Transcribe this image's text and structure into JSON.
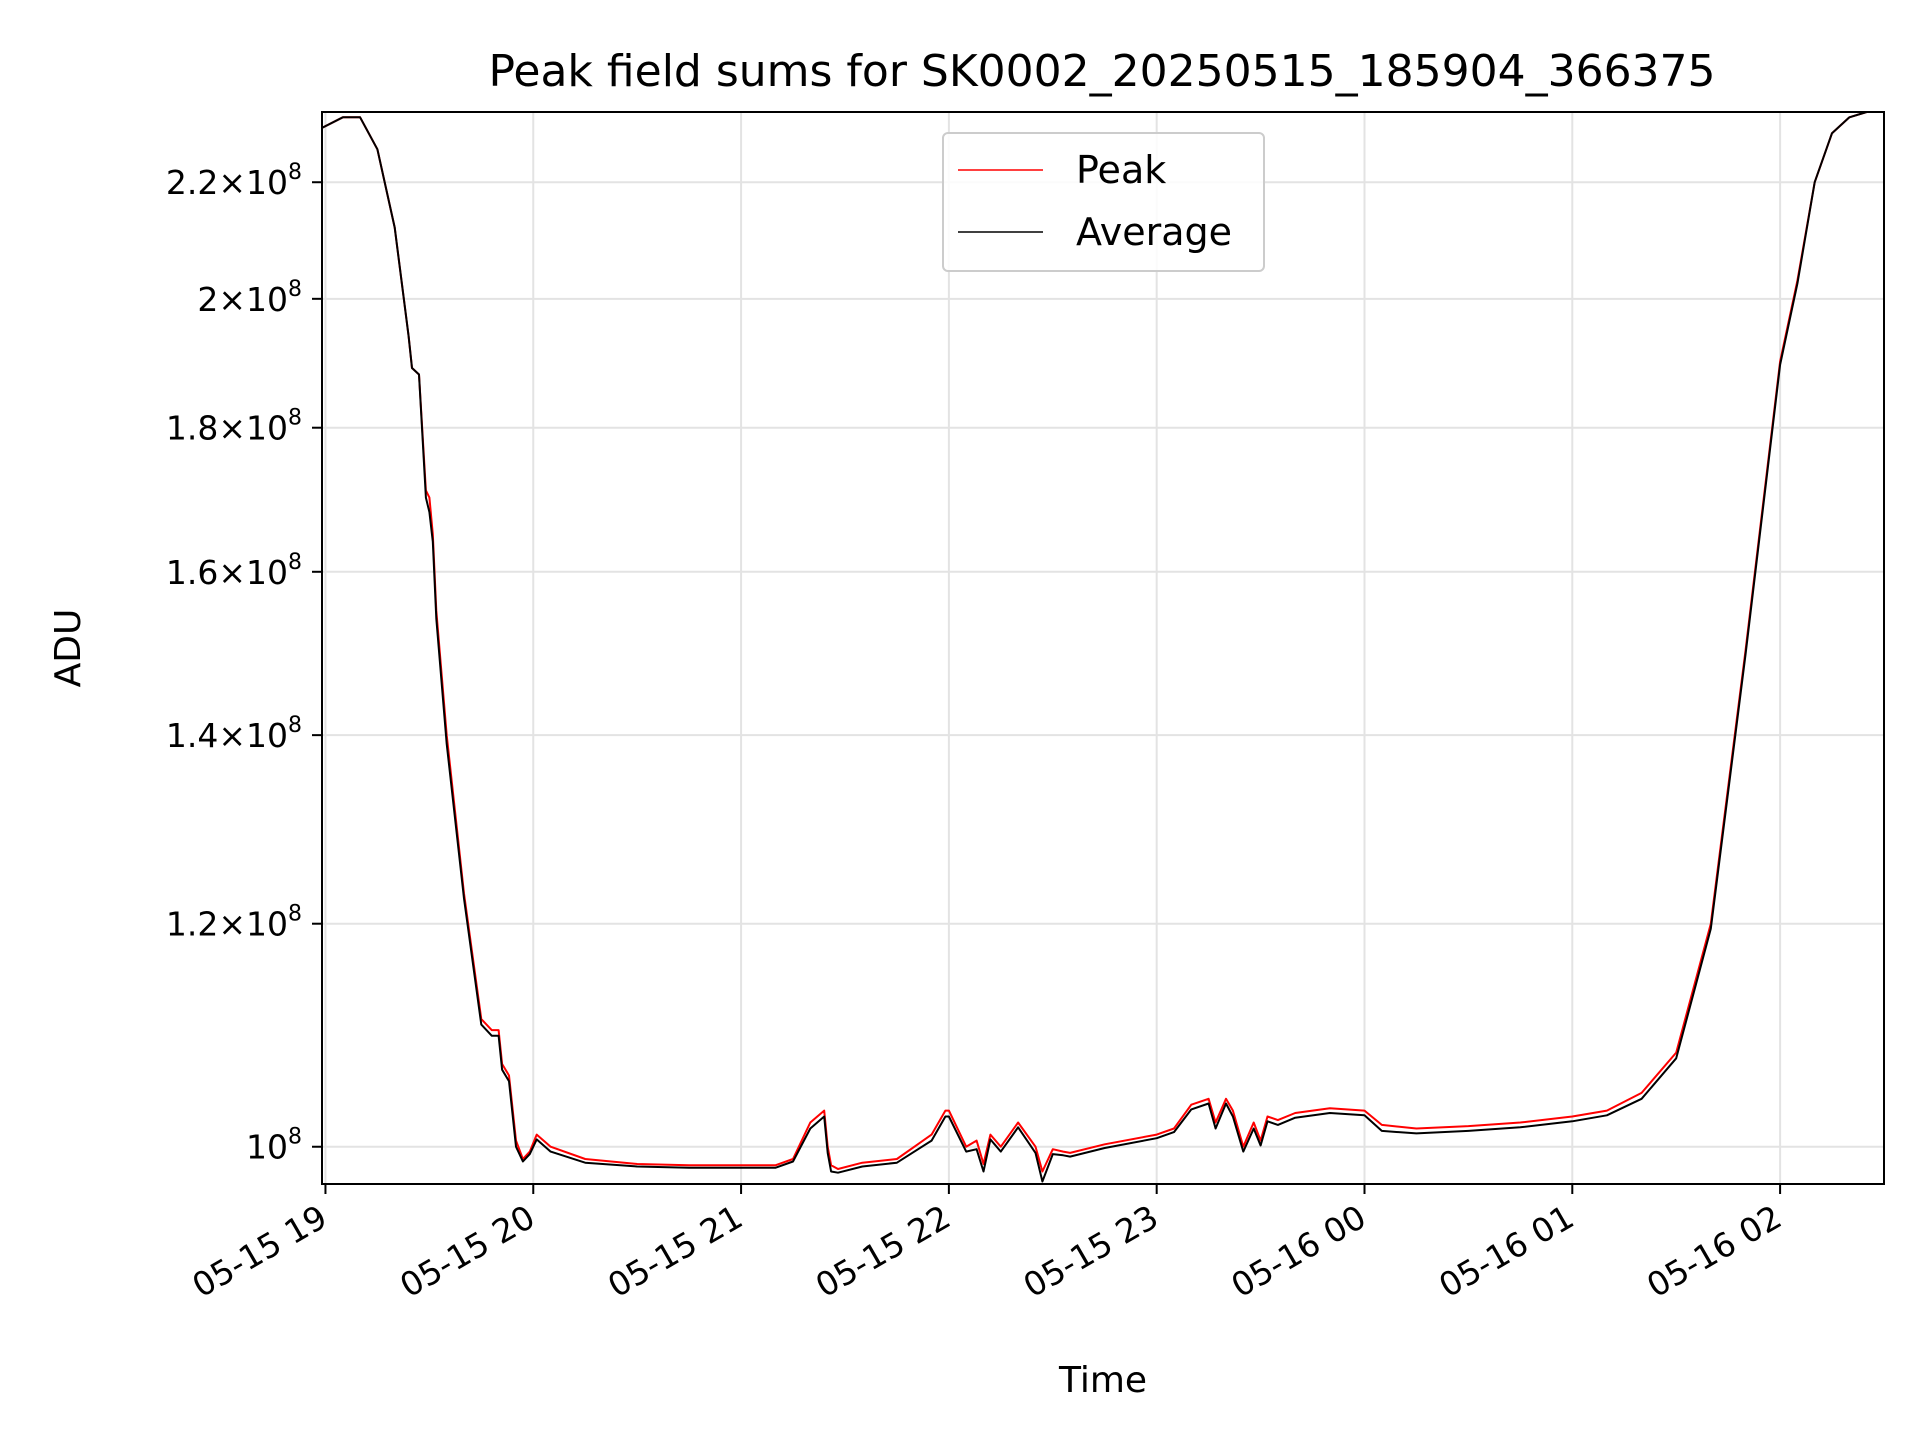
{
  "chart_data": {
    "type": "line",
    "title": "Peak field sums for SK0002_20250515_185904_366375",
    "xlabel": "Time",
    "ylabel": "ADU",
    "y_scale": "log",
    "xlim": [
      "2025-05-15 18:59",
      "2025-05-16 02:30"
    ],
    "ylim": [
      97000000,
      233000000
    ],
    "grid": true,
    "legend_position": "top-center",
    "x_ticks": [
      "2025-05-15 19:00",
      "2025-05-15 20:00",
      "2025-05-15 21:00",
      "2025-05-15 22:00",
      "2025-05-15 23:00",
      "2025-05-16 00:00",
      "2025-05-16 01:00",
      "2025-05-16 02:00"
    ],
    "x_tick_labels": [
      "05-15 19",
      "05-15 20",
      "05-15 21",
      "05-15 22",
      "05-15 23",
      "05-16 00",
      "05-16 01",
      "05-16 02"
    ],
    "y_ticks": [
      100000000,
      120000000,
      140000000,
      160000000,
      180000000,
      200000000,
      220000000
    ],
    "y_tick_labels": [
      {
        "mantissa": "",
        "base": "10",
        "exp": "8"
      },
      {
        "mantissa": "1.2",
        "base": "10",
        "exp": "8"
      },
      {
        "mantissa": "1.4",
        "base": "10",
        "exp": "8"
      },
      {
        "mantissa": "1.6",
        "base": "10",
        "exp": "8"
      },
      {
        "mantissa": "1.8",
        "base": "10",
        "exp": "8"
      },
      {
        "mantissa": "2",
        "base": "10",
        "exp": "8"
      },
      {
        "mantissa": "2.2",
        "base": "10",
        "exp": "8"
      }
    ],
    "series": [
      {
        "name": "Peak",
        "color": "#ff0000",
        "x": [
          "2025-05-15 18:59",
          "2025-05-15 19:05",
          "2025-05-15 19:10",
          "2025-05-15 19:15",
          "2025-05-15 19:20",
          "2025-05-15 19:24",
          "2025-05-15 19:25",
          "2025-05-15 19:27",
          "2025-05-15 19:29",
          "2025-05-15 19:30",
          "2025-05-15 19:31",
          "2025-05-15 19:32",
          "2025-05-15 19:35",
          "2025-05-15 19:40",
          "2025-05-15 19:45",
          "2025-05-15 19:48",
          "2025-05-15 19:50",
          "2025-05-15 19:51",
          "2025-05-15 19:53",
          "2025-05-15 19:55",
          "2025-05-15 19:57",
          "2025-05-15 19:59",
          "2025-05-15 20:01",
          "2025-05-15 20:05",
          "2025-05-15 20:15",
          "2025-05-15 20:30",
          "2025-05-15 20:45",
          "2025-05-15 21:00",
          "2025-05-15 21:10",
          "2025-05-15 21:15",
          "2025-05-15 21:20",
          "2025-05-15 21:24",
          "2025-05-15 21:25",
          "2025-05-15 21:26",
          "2025-05-15 21:28",
          "2025-05-15 21:35",
          "2025-05-15 21:45",
          "2025-05-15 21:55",
          "2025-05-15 21:59",
          "2025-05-15 22:00",
          "2025-05-15 22:05",
          "2025-05-15 22:08",
          "2025-05-15 22:10",
          "2025-05-15 22:12",
          "2025-05-15 22:15",
          "2025-05-15 22:20",
          "2025-05-15 22:25",
          "2025-05-15 22:27",
          "2025-05-15 22:30",
          "2025-05-15 22:33",
          "2025-05-15 22:35",
          "2025-05-15 22:45",
          "2025-05-15 23:00",
          "2025-05-15 23:05",
          "2025-05-15 23:10",
          "2025-05-15 23:15",
          "2025-05-15 23:17",
          "2025-05-15 23:20",
          "2025-05-15 23:22",
          "2025-05-15 23:25",
          "2025-05-15 23:28",
          "2025-05-15 23:30",
          "2025-05-15 23:32",
          "2025-05-15 23:35",
          "2025-05-15 23:40",
          "2025-05-15 23:50",
          "2025-05-16 00:00",
          "2025-05-16 00:05",
          "2025-05-16 00:15",
          "2025-05-16 00:30",
          "2025-05-16 00:45",
          "2025-05-16 01:00",
          "2025-05-16 01:10",
          "2025-05-16 01:20",
          "2025-05-16 01:30",
          "2025-05-16 01:40",
          "2025-05-16 01:50",
          "2025-05-16 02:00",
          "2025-05-16 02:05",
          "2025-05-16 02:10",
          "2025-05-16 02:15",
          "2025-05-16 02:20",
          "2025-05-16 02:25",
          "2025-05-16 02:30"
        ],
        "values": [
          230000000,
          232000000,
          232000000,
          226000000,
          212000000,
          194000000,
          189000000,
          188000000,
          171000000,
          170000000,
          165000000,
          155000000,
          140000000,
          123000000,
          111000000,
          110000000,
          110000000,
          107000000,
          106000000,
          100500000,
          99000000,
          99600000,
          101000000,
          100000000,
          99000000,
          98600000,
          98500000,
          98500000,
          98500000,
          99000000,
          102000000,
          103000000,
          100000000,
          98500000,
          98200000,
          98700000,
          99000000,
          101000000,
          103000000,
          103000000,
          100000000,
          100500000,
          98600000,
          101000000,
          100000000,
          102000000,
          100000000,
          98000000,
          99800000,
          99600000,
          99500000,
          100200000,
          101000000,
          101500000,
          103500000,
          104000000,
          102000000,
          104000000,
          103000000,
          100000000,
          102000000,
          100500000,
          102500000,
          102200000,
          102800000,
          103200000,
          103000000,
          101800000,
          101500000,
          101700000,
          102000000,
          102500000,
          103000000,
          104500000,
          108000000,
          120000000,
          150000000,
          190000000,
          203000000,
          220000000,
          229000000,
          232000000,
          233000000,
          233000000
        ]
      },
      {
        "name": "Average",
        "color": "#000000",
        "x": [
          "2025-05-15 18:59",
          "2025-05-15 19:05",
          "2025-05-15 19:10",
          "2025-05-15 19:15",
          "2025-05-15 19:20",
          "2025-05-15 19:24",
          "2025-05-15 19:25",
          "2025-05-15 19:27",
          "2025-05-15 19:29",
          "2025-05-15 19:30",
          "2025-05-15 19:31",
          "2025-05-15 19:32",
          "2025-05-15 19:35",
          "2025-05-15 19:40",
          "2025-05-15 19:45",
          "2025-05-15 19:48",
          "2025-05-15 19:50",
          "2025-05-15 19:51",
          "2025-05-15 19:53",
          "2025-05-15 19:55",
          "2025-05-15 19:57",
          "2025-05-15 19:59",
          "2025-05-15 20:01",
          "2025-05-15 20:05",
          "2025-05-15 20:15",
          "2025-05-15 20:30",
          "2025-05-15 20:45",
          "2025-05-15 21:00",
          "2025-05-15 21:10",
          "2025-05-15 21:15",
          "2025-05-15 21:20",
          "2025-05-15 21:24",
          "2025-05-15 21:25",
          "2025-05-15 21:26",
          "2025-05-15 21:28",
          "2025-05-15 21:35",
          "2025-05-15 21:45",
          "2025-05-15 21:55",
          "2025-05-15 21:59",
          "2025-05-15 22:00",
          "2025-05-15 22:05",
          "2025-05-15 22:08",
          "2025-05-15 22:10",
          "2025-05-15 22:12",
          "2025-05-15 22:15",
          "2025-05-15 22:20",
          "2025-05-15 22:25",
          "2025-05-15 22:27",
          "2025-05-15 22:30",
          "2025-05-15 22:33",
          "2025-05-15 22:35",
          "2025-05-15 22:45",
          "2025-05-15 23:00",
          "2025-05-15 23:05",
          "2025-05-15 23:10",
          "2025-05-15 23:15",
          "2025-05-15 23:17",
          "2025-05-15 23:20",
          "2025-05-15 23:22",
          "2025-05-15 23:25",
          "2025-05-15 23:28",
          "2025-05-15 23:30",
          "2025-05-15 23:32",
          "2025-05-15 23:35",
          "2025-05-15 23:40",
          "2025-05-15 23:50",
          "2025-05-16 00:00",
          "2025-05-16 00:05",
          "2025-05-16 00:15",
          "2025-05-16 00:30",
          "2025-05-16 00:45",
          "2025-05-16 01:00",
          "2025-05-16 01:10",
          "2025-05-16 01:20",
          "2025-05-16 01:30",
          "2025-05-16 01:40",
          "2025-05-16 01:50",
          "2025-05-16 02:00",
          "2025-05-16 02:05",
          "2025-05-16 02:10",
          "2025-05-16 02:15",
          "2025-05-16 02:20",
          "2025-05-16 02:25",
          "2025-05-16 02:30"
        ],
        "values": [
          230000000,
          232000000,
          232000000,
          226000000,
          212000000,
          194000000,
          189000000,
          188000000,
          170000000,
          168000000,
          164000000,
          154000000,
          139000000,
          122500000,
          110500000,
          109500000,
          109500000,
          106500000,
          105500000,
          100000000,
          98800000,
          99400000,
          100600000,
          99600000,
          98700000,
          98400000,
          98300000,
          98300000,
          98300000,
          98800000,
          101500000,
          102500000,
          99500000,
          98000000,
          97900000,
          98400000,
          98700000,
          100500000,
          102500000,
          102500000,
          99600000,
          99800000,
          98000000,
          100600000,
          99600000,
          101600000,
          99500000,
          97200000,
          99400000,
          99300000,
          99200000,
          99900000,
          100700000,
          101200000,
          103100000,
          103600000,
          101500000,
          103600000,
          102500000,
          99600000,
          101500000,
          100100000,
          102100000,
          101800000,
          102400000,
          102800000,
          102600000,
          101300000,
          101100000,
          101300000,
          101600000,
          102100000,
          102600000,
          104000000,
          107500000,
          119500000,
          149500000,
          189500000,
          202500000,
          220000000,
          229000000,
          232000000,
          233000000,
          233000000
        ]
      }
    ]
  }
}
